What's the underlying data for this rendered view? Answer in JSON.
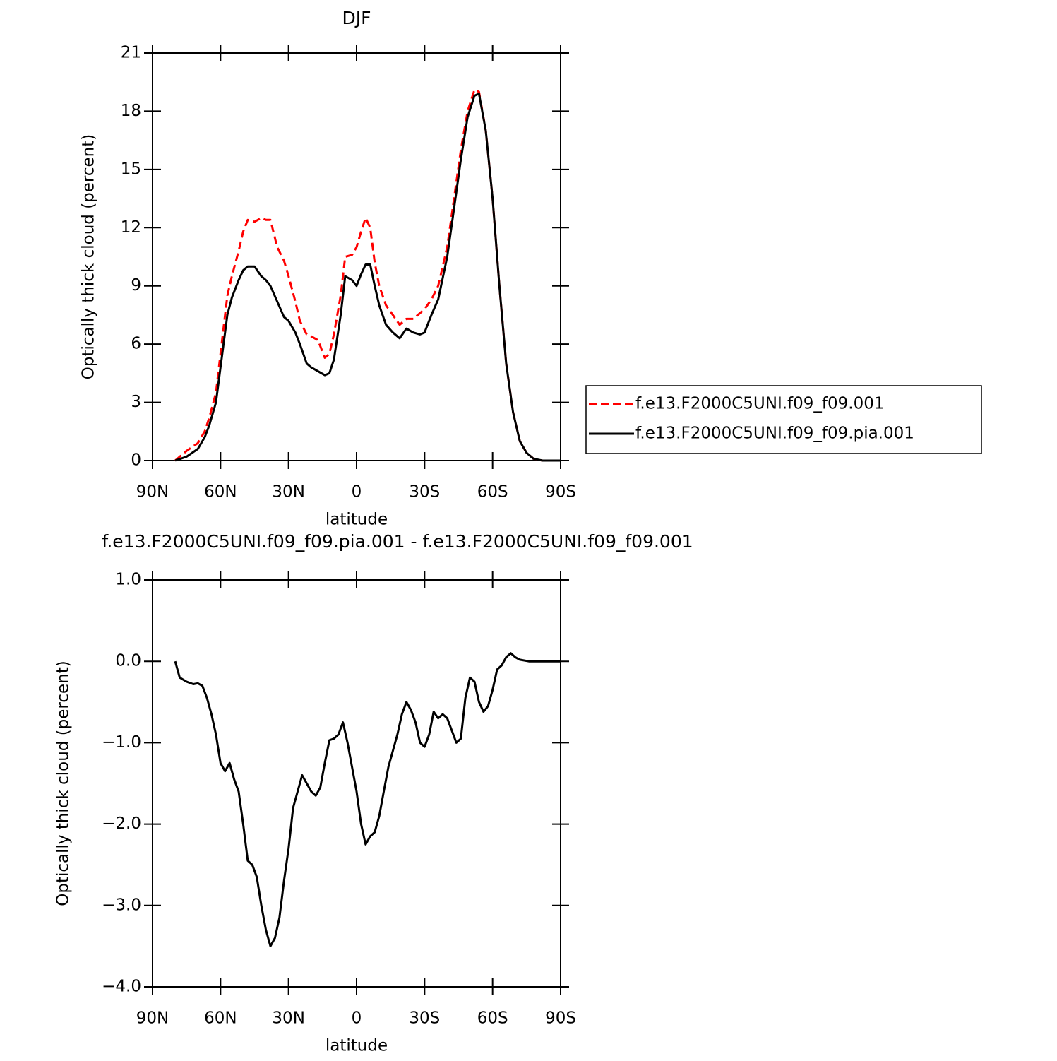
{
  "chart_data": [
    {
      "type": "line",
      "title": "DJF",
      "xlabel": "latitude",
      "ylabel": "Optically thick cloud (percent)",
      "x": [
        80,
        75,
        70,
        67,
        65,
        62,
        60,
        57,
        55,
        52,
        50,
        48,
        45,
        42,
        40,
        38,
        35,
        32,
        30,
        27,
        25,
        22,
        20,
        17,
        14,
        12,
        10,
        7,
        5,
        2,
        0,
        -2,
        -4,
        -6,
        -8,
        -10,
        -13,
        -16,
        -19,
        -22,
        -25,
        -28,
        -30,
        -33,
        -36,
        -40,
        -43,
        -46,
        -49,
        -52,
        -54,
        -57,
        -60,
        -63,
        -66,
        -69,
        -72,
        -75,
        -78,
        -82,
        -86,
        -90
      ],
      "series": [
        {
          "name": "f.e13.F2000C5UNI.f09_f09.001",
          "color": "#ff0000",
          "dash": true,
          "values": [
            0,
            0.5,
            0.9,
            1.5,
            2.2,
            3.5,
            5.5,
            8.5,
            9.5,
            10.8,
            11.8,
            12.4,
            12.3,
            12.5,
            12.4,
            12.4,
            11.0,
            10.3,
            9.5,
            8.2,
            7.2,
            6.5,
            6.4,
            6.2,
            5.3,
            5.5,
            6.5,
            8.5,
            10.5,
            10.6,
            11.0,
            11.8,
            12.5,
            12.0,
            10.2,
            9.0,
            8.0,
            7.5,
            7.0,
            7.3,
            7.3,
            7.6,
            7.8,
            8.3,
            9.0,
            11.0,
            13.5,
            16.0,
            18.0,
            19.1,
            19.0,
            17.0,
            13.5,
            9.0,
            5.0,
            2.5,
            1.0,
            0.4,
            0.1,
            0,
            0,
            0
          ]
        },
        {
          "name": "f.e13.F2000C5UNI.f09_f09.pia.001",
          "color": "#000000",
          "dash": false,
          "values": [
            0,
            0.2,
            0.6,
            1.2,
            1.8,
            3.0,
            4.8,
            7.5,
            8.4,
            9.3,
            9.8,
            10.0,
            10.0,
            9.5,
            9.3,
            9.0,
            8.2,
            7.4,
            7.2,
            6.6,
            6.0,
            5.0,
            4.8,
            4.6,
            4.4,
            4.5,
            5.2,
            7.5,
            9.5,
            9.3,
            9.0,
            9.6,
            10.1,
            10.1,
            9.0,
            8.0,
            7.0,
            6.6,
            6.3,
            6.8,
            6.6,
            6.5,
            6.6,
            7.5,
            8.3,
            10.5,
            13.0,
            15.5,
            17.7,
            18.8,
            18.9,
            17.0,
            13.5,
            9.0,
            5.0,
            2.5,
            1.0,
            0.4,
            0.1,
            0,
            0,
            0
          ]
        }
      ],
      "xlim": [
        90,
        -90
      ],
      "xticks": [
        {
          "value": 90,
          "label": "90N"
        },
        {
          "value": 60,
          "label": "60N"
        },
        {
          "value": 30,
          "label": "30N"
        },
        0,
        {
          "value": -30,
          "label": "30S"
        },
        {
          "value": -60,
          "label": "60S"
        },
        {
          "value": -90,
          "label": "90S"
        }
      ],
      "ylim": [
        0,
        21
      ],
      "yticks": [
        0,
        3,
        6,
        9,
        12,
        15,
        18,
        21
      ],
      "legend": "right"
    },
    {
      "type": "line",
      "title": "f.e13.F2000C5UNI.f09_f09.pia.001 - f.e13.F2000C5UNI.f09_f09.001",
      "xlabel": "latitude",
      "ylabel": "Optically thick cloud (percent)",
      "x": [
        80,
        78,
        75,
        72,
        70,
        68,
        66,
        64,
        62,
        60,
        58,
        56,
        54,
        52,
        50,
        48,
        46,
        44,
        42,
        40,
        38,
        36,
        34,
        32,
        30,
        28,
        26,
        24,
        22,
        20,
        18,
        16,
        14,
        12,
        10,
        8,
        6,
        4,
        2,
        0,
        -2,
        -4,
        -6,
        -8,
        -10,
        -12,
        -14,
        -16,
        -18,
        -20,
        -22,
        -24,
        -26,
        -28,
        -30,
        -32,
        -34,
        -36,
        -38,
        -40,
        -42,
        -44,
        -46,
        -48,
        -50,
        -52,
        -54,
        -56,
        -58,
        -60,
        -62,
        -64,
        -66,
        -68,
        -70,
        -72,
        -76,
        -80,
        -85,
        -90
      ],
      "series": [
        {
          "color": "#000000",
          "dash": false,
          "values": [
            0,
            -0.2,
            -0.25,
            -0.28,
            -0.27,
            -0.3,
            -0.45,
            -0.65,
            -0.9,
            -1.25,
            -1.35,
            -1.25,
            -1.45,
            -1.6,
            -2.0,
            -2.45,
            -2.5,
            -2.65,
            -3.0,
            -3.3,
            -3.5,
            -3.4,
            -3.15,
            -2.7,
            -2.3,
            -1.8,
            -1.6,
            -1.4,
            -1.5,
            -1.6,
            -1.65,
            -1.55,
            -1.25,
            -0.97,
            -0.95,
            -0.9,
            -0.75,
            -1.0,
            -1.3,
            -1.6,
            -2.0,
            -2.25,
            -2.15,
            -2.1,
            -1.9,
            -1.6,
            -1.3,
            -1.1,
            -0.9,
            -0.65,
            -0.5,
            -0.6,
            -0.75,
            -1.0,
            -1.05,
            -0.9,
            -0.62,
            -0.7,
            -0.65,
            -0.7,
            -0.85,
            -1.0,
            -0.95,
            -0.45,
            -0.2,
            -0.25,
            -0.5,
            -0.62,
            -0.55,
            -0.35,
            -0.1,
            -0.05,
            0.05,
            0.1,
            0.05,
            0.02,
            0,
            0,
            0,
            0
          ]
        }
      ],
      "xlim": [
        90,
        -90
      ],
      "xticks": [
        {
          "value": 90,
          "label": "90N"
        },
        {
          "value": 60,
          "label": "60N"
        },
        {
          "value": 30,
          "label": "30N"
        },
        0,
        {
          "value": -30,
          "label": "30S"
        },
        {
          "value": -60,
          "label": "60S"
        },
        {
          "value": -90,
          "label": "90S"
        }
      ],
      "ylim": [
        -4,
        1
      ],
      "yticks": [
        {
          "value": -4,
          "label": "−4.0"
        },
        {
          "value": -3,
          "label": "−3.0"
        },
        {
          "value": -2,
          "label": "−2.0"
        },
        {
          "value": -1,
          "label": "−1.0"
        },
        {
          "value": 0,
          "label": "0.0"
        },
        {
          "value": 1,
          "label": "1.0"
        }
      ]
    }
  ]
}
